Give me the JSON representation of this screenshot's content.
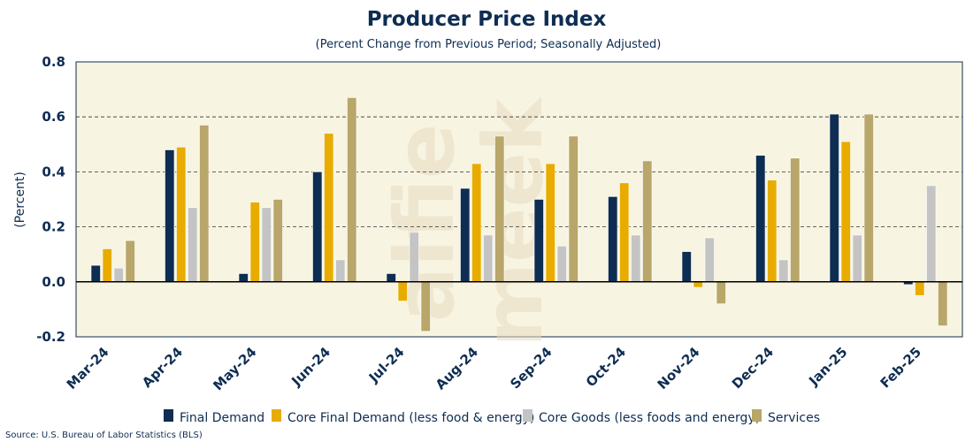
{
  "chart_data": {
    "type": "bar",
    "title": "Producer Price Index",
    "subtitle": "(Percent Change from Previous Period; Seasonally Adjusted)",
    "ylabel": "(Percent)",
    "xlabel": "",
    "ylim": [
      -0.2,
      0.8
    ],
    "yticks": [
      "0.8",
      "0.6",
      "0.4",
      "0.2",
      "0.0",
      "-0.2"
    ],
    "ytick_values": [
      0.8,
      0.6,
      0.4,
      0.2,
      0.0,
      -0.2
    ],
    "grid": "horizontal dashed",
    "legend_position": "bottom",
    "categories": [
      "Mar-24",
      "Apr-24",
      "May-24",
      "Jun-24",
      "Jul-24",
      "Aug-24",
      "Sep-24",
      "Oct-24",
      "Nov-24",
      "Dec-24",
      "Jan-25",
      "Feb-25"
    ],
    "series": [
      {
        "name": "Final Demand",
        "color": "#0e2d52",
        "values": [
          0.06,
          0.48,
          0.03,
          0.4,
          0.03,
          0.34,
          0.3,
          0.31,
          0.11,
          0.46,
          0.61,
          -0.01
        ]
      },
      {
        "name": "Core Final Demand (less food & energy)",
        "color": "#e8ac00",
        "values": [
          0.12,
          0.49,
          0.29,
          0.54,
          -0.07,
          0.43,
          0.43,
          0.36,
          -0.02,
          0.37,
          0.51,
          -0.05
        ]
      },
      {
        "name": "Core Goods (less foods and energy)",
        "color": "#c4c4c4",
        "values": [
          0.05,
          0.27,
          0.27,
          0.08,
          0.18,
          0.17,
          0.13,
          0.17,
          0.16,
          0.08,
          0.17,
          0.35
        ]
      },
      {
        "name": "Services",
        "color": "#b8a66a",
        "values": [
          0.15,
          0.57,
          0.3,
          0.67,
          -0.18,
          0.53,
          0.53,
          0.44,
          -0.08,
          0.45,
          0.61,
          -0.16
        ]
      }
    ]
  },
  "source": "Source: U.S. Bureau of Labor Statistics (BLS)",
  "watermark": "alfie meek",
  "plot_background": "#f8f4e2"
}
